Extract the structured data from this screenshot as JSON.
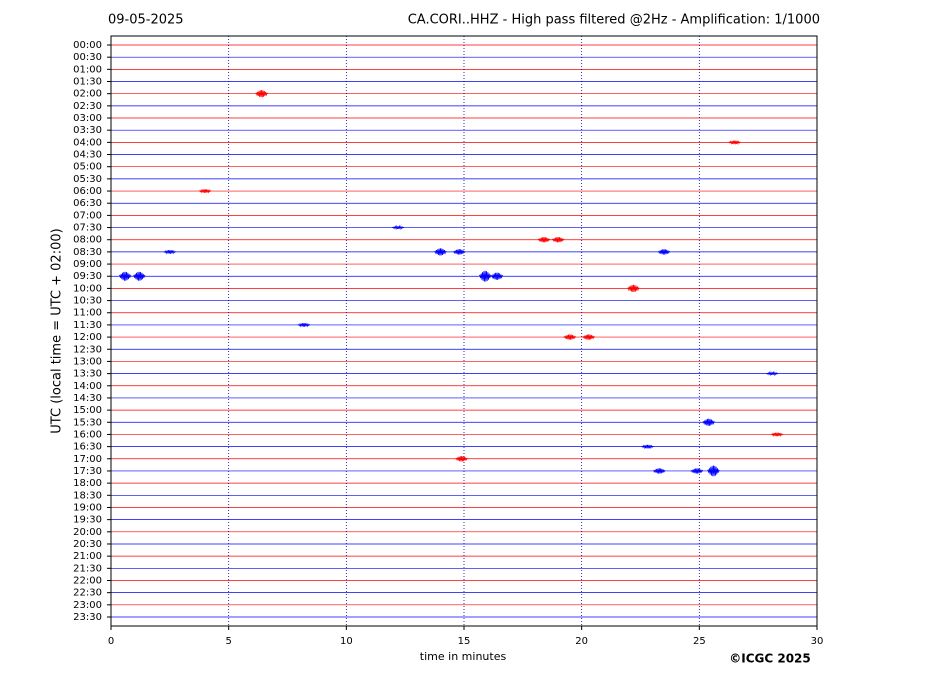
{
  "chart_data": {
    "type": "helicorder",
    "date": "09-05-2025",
    "title": "CA.CORI..HHZ - High pass filtered @2Hz - Amplification: 1/1000",
    "ylabel": "UTC (local time = UTC + 02:00)",
    "xlabel": "time in minutes",
    "copyright": "©ICGC 2025",
    "xlim": [
      0,
      30
    ],
    "xticks": [
      0,
      5,
      10,
      15,
      20,
      25,
      30
    ],
    "grid": true,
    "row_colors": [
      "#ff0000",
      "#0000ff"
    ],
    "rows": [
      "00:00",
      "00:30",
      "01:00",
      "01:30",
      "02:00",
      "02:30",
      "03:00",
      "03:30",
      "04:00",
      "04:30",
      "05:00",
      "05:30",
      "06:00",
      "06:30",
      "07:00",
      "07:30",
      "08:00",
      "08:30",
      "09:00",
      "09:30",
      "10:00",
      "10:30",
      "11:00",
      "11:30",
      "12:00",
      "12:30",
      "13:00",
      "13:30",
      "14:00",
      "14:30",
      "15:00",
      "15:30",
      "16:00",
      "16:30",
      "17:00",
      "17:30",
      "18:00",
      "18:30",
      "19:00",
      "19:30",
      "20:00",
      "20:30",
      "21:00",
      "21:30",
      "22:00",
      "22:30",
      "23:00",
      "23:30"
    ],
    "events": [
      {
        "row": 4,
        "minute": 6.4,
        "amplitude": 4
      },
      {
        "row": 8,
        "minute": 26.5,
        "amplitude": 2
      },
      {
        "row": 12,
        "minute": 4.0,
        "amplitude": 2
      },
      {
        "row": 15,
        "minute": 12.2,
        "amplitude": 1.5
      },
      {
        "row": 16,
        "minute": 18.4,
        "amplitude": 3
      },
      {
        "row": 16,
        "minute": 19.0,
        "amplitude": 3
      },
      {
        "row": 17,
        "minute": 2.5,
        "amplitude": 2
      },
      {
        "row": 17,
        "minute": 14.0,
        "amplitude": 4
      },
      {
        "row": 17,
        "minute": 14.8,
        "amplitude": 3
      },
      {
        "row": 17,
        "minute": 23.5,
        "amplitude": 3
      },
      {
        "row": 19,
        "minute": 0.6,
        "amplitude": 5
      },
      {
        "row": 19,
        "minute": 1.2,
        "amplitude": 5
      },
      {
        "row": 19,
        "minute": 15.9,
        "amplitude": 6
      },
      {
        "row": 19,
        "minute": 16.4,
        "amplitude": 4
      },
      {
        "row": 20,
        "minute": 22.2,
        "amplitude": 4
      },
      {
        "row": 23,
        "minute": 8.2,
        "amplitude": 2
      },
      {
        "row": 24,
        "minute": 19.5,
        "amplitude": 3
      },
      {
        "row": 24,
        "minute": 20.3,
        "amplitude": 3
      },
      {
        "row": 27,
        "minute": 28.1,
        "amplitude": 1.5
      },
      {
        "row": 31,
        "minute": 25.4,
        "amplitude": 4
      },
      {
        "row": 32,
        "minute": 28.3,
        "amplitude": 2
      },
      {
        "row": 33,
        "minute": 22.8,
        "amplitude": 2
      },
      {
        "row": 34,
        "minute": 14.9,
        "amplitude": 3
      },
      {
        "row": 35,
        "minute": 23.3,
        "amplitude": 3
      },
      {
        "row": 35,
        "minute": 24.9,
        "amplitude": 3
      },
      {
        "row": 35,
        "minute": 25.6,
        "amplitude": 6
      }
    ]
  }
}
